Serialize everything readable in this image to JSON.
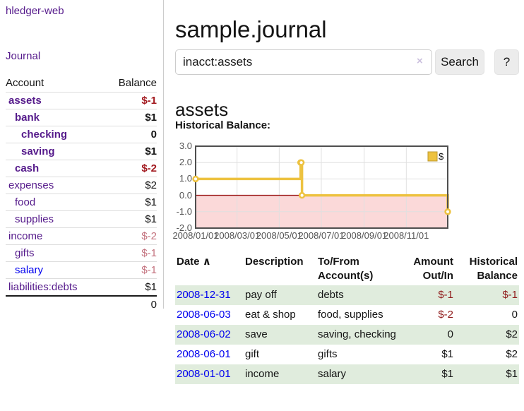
{
  "sidebar": {
    "brand": "hledger-web",
    "journal_link": "Journal",
    "accounts": {
      "header_account": "Account",
      "header_balance": "Balance",
      "rows": [
        {
          "name": "assets",
          "depth": 1,
          "bold": true,
          "link_color": "purple",
          "balance": "$-1",
          "balance_style": "negative"
        },
        {
          "name": "bank",
          "depth": 2,
          "bold": true,
          "link_color": "purple",
          "balance": "$1",
          "balance_style": "normal"
        },
        {
          "name": "checking",
          "depth": 3,
          "bold": true,
          "link_color": "purple",
          "balance": "0",
          "balance_style": "normal"
        },
        {
          "name": "saving",
          "depth": 3,
          "bold": true,
          "link_color": "purple",
          "balance": "$1",
          "balance_style": "normal"
        },
        {
          "name": "cash",
          "depth": 2,
          "bold": true,
          "link_color": "purple",
          "balance": "$-2",
          "balance_style": "negative"
        },
        {
          "name": "expenses",
          "depth": 1,
          "bold": false,
          "link_color": "purple",
          "balance": "$2",
          "balance_style": "normal"
        },
        {
          "name": "food",
          "depth": 2,
          "bold": false,
          "link_color": "purple",
          "balance": "$1",
          "balance_style": "normal"
        },
        {
          "name": "supplies",
          "depth": 2,
          "bold": false,
          "link_color": "purple",
          "balance": "$1",
          "balance_style": "normal"
        },
        {
          "name": "income",
          "depth": 1,
          "bold": false,
          "link_color": "purple",
          "balance": "$-2",
          "balance_style": "negative-faded"
        },
        {
          "name": "gifts",
          "depth": 2,
          "bold": false,
          "link_color": "purple",
          "balance": "$-1",
          "balance_style": "negative-faded"
        },
        {
          "name": "salary",
          "depth": 2,
          "bold": false,
          "link_color": "blue",
          "balance": "$-1",
          "balance_style": "negative-faded"
        },
        {
          "name": "liabilities:debts",
          "depth": 1,
          "bold": false,
          "link_color": "purple",
          "balance": "$1",
          "balance_style": "normal"
        }
      ],
      "total": "0"
    }
  },
  "header": {
    "title": "sample.journal"
  },
  "search": {
    "query": "inacct:assets",
    "clear_icon": "×",
    "button": "Search",
    "help": "?"
  },
  "account_view": {
    "heading": "assets",
    "chart_heading": "Historical Balance:"
  },
  "chart_data": {
    "type": "line",
    "step": true,
    "title": "Historical Balance",
    "legend_position": "top-right",
    "xlim": [
      "2008-01-01",
      "2008-12-31"
    ],
    "ylim": [
      -2,
      3
    ],
    "x_ticks": [
      "2008/01/01",
      "2008/03/01",
      "2008/05/01",
      "2008/07/01",
      "2008/09/01",
      "2008/11/01"
    ],
    "y_ticks": [
      "3.0",
      "2.0",
      "1.0",
      "0.0",
      "-1.0",
      "-2.0"
    ],
    "series": [
      {
        "name": "$",
        "color": "#edc240",
        "points": [
          [
            "2008-01-01",
            1
          ],
          [
            "2008-06-01",
            2
          ],
          [
            "2008-06-02",
            2
          ],
          [
            "2008-06-03",
            0
          ],
          [
            "2008-12-31",
            -1
          ]
        ]
      }
    ],
    "grid": true,
    "grid_color": "#e0e0e0",
    "border_color": "#4f4f4f",
    "tick_label_color": "#545454",
    "zero_line_color": "#991111",
    "negative_region_color": "#fbd9d9",
    "legend_swatch_border": "#bd9a2f"
  },
  "register": {
    "columns": [
      {
        "label": "Date",
        "align": "left",
        "sortable": true
      },
      {
        "label": "Description",
        "align": "left"
      },
      {
        "label": "To/From\nAccount(s)",
        "align": "left"
      },
      {
        "label": "Amount\nOut/In",
        "align": "right"
      },
      {
        "label": "Historical\nBalance",
        "align": "right"
      }
    ],
    "sort_icon": "∧",
    "rows": [
      {
        "date": "2008-12-31",
        "description": "pay off",
        "accounts": "debts",
        "amount": "$-1",
        "amount_negative": true,
        "balance": "$-1",
        "balance_negative": true,
        "shaded": true
      },
      {
        "date": "2008-06-03",
        "description": "eat & shop",
        "accounts": "food, supplies",
        "amount": "$-2",
        "amount_negative": true,
        "balance": "0",
        "balance_negative": false,
        "shaded": false
      },
      {
        "date": "2008-06-02",
        "description": "save",
        "accounts": "saving, checking",
        "amount": "0",
        "amount_negative": false,
        "balance": "$2",
        "balance_negative": false,
        "shaded": true
      },
      {
        "date": "2008-06-01",
        "description": "gift",
        "accounts": "gifts",
        "amount": "$1",
        "amount_negative": false,
        "balance": "$2",
        "balance_negative": false,
        "shaded": false
      },
      {
        "date": "2008-01-01",
        "description": "income",
        "accounts": "salary",
        "amount": "$1",
        "amount_negative": false,
        "balance": "$1",
        "balance_negative": false,
        "shaded": true
      }
    ]
  },
  "colors": {
    "link_purple": "#551a8b",
    "link_blue": "#0000ee",
    "negative": "#8f1a1a",
    "negative_faded": "#c4737f",
    "row_green": "#e0ecdd",
    "button_bg": "#ececec",
    "sidebar_border": "#cccccc"
  }
}
